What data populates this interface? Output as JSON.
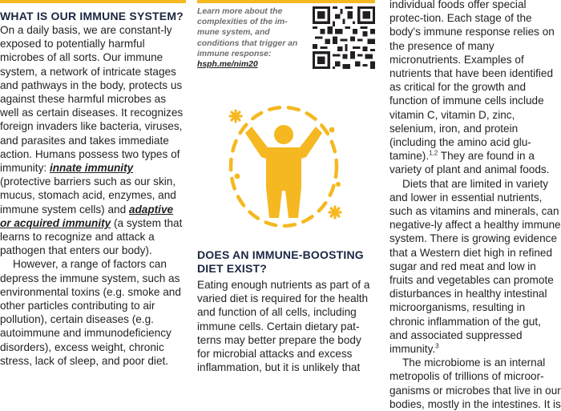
{
  "col1": {
    "heading": "WHAT IS OUR IMMUNE SYSTEM?",
    "p1_a": "On a daily basis, we are constant-ly exposed to potentially harmful microbes of all sorts. Our immune system, a network of intricate stages and pathways in the body, protects us against these harmful microbes as well as certain diseases. It recognizes foreign invaders like bacteria, viruses, and parasites and takes immediate action. Humans possess two types of immunity: ",
    "innate": "innate immunity",
    "p1_b": " (protective barriers such as our skin, mucus, stomach acid, enzymes, and immune system cells) and ",
    "adaptive": "adaptive or acquired immunity",
    "p1_c": " (a system that learns to recognize and attack a pathogen that enters our body).",
    "p2": "However, a range of factors can depress the immune system, such as environmental toxins (e.g. smoke and other particles contributing to air pollution), certain diseases (e.g. autoimmune and immunodeficiency disorders), excess weight, chronic stress, lack of sleep, and poor diet."
  },
  "callout": {
    "text": "Learn more about the complexities of the im-mune system, and conditions that trigger an immune response:",
    "link": "hsph.me/nim20"
  },
  "col2": {
    "heading": "DOES AN IMMUNE-BOOSTING DIET EXIST?",
    "p1": "Eating enough nutrients as part of a varied diet is required for the health and function of all cells, including immune cells. Certain dietary pat-terns may better prepare the body for microbial attacks and excess inflammation, but it is unlikely that"
  },
  "col3": {
    "p1_a": "individual foods offer special protec-tion. Each stage of the body's immune response relies on the presence of many micronutrients. Examples of nutrients that have been identified as critical for the growth and function of immune cells include vitamin C, vitamin D, zinc, selenium, iron, and protein (including the amino acid glu-tamine).",
    "p1_sup": "1,2",
    "p1_b": " They are found in a variety of plant and animal foods.",
    "p2_a": "Diets that are limited in variety and lower in essential nutrients, such as vitamins and minerals, can negative-ly affect a healthy immune system. There is growing evidence that a Western diet high in refined sugar and red meat and low in fruits and vegetables can promote disturbances in healthy intestinal microorganisms, resulting in chronic inflammation of the gut, and associated suppressed immunity.",
    "p2_sup": "3",
    "p3": "The microbiome is an internal metropolis of trillions of microor-ganisms or microbes that live in our bodies, mostly in the intestines. It is"
  },
  "colors": {
    "accent": "#f5b820",
    "heading": "#1a2741",
    "body": "#231f20",
    "callout": "#6d6e71"
  },
  "icons": [
    "qr-code-icon",
    "immune-person-icon"
  ]
}
